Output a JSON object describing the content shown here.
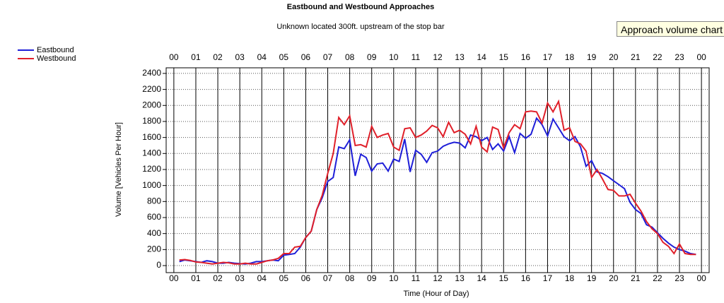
{
  "chart_data": {
    "type": "line",
    "title": "Eastbound and Westbound Approaches",
    "subtitle": "Unknown located 300ft. upstream of the stop bar",
    "tooltip": "Approach volume chart",
    "xlabel": "Time (Hour of Day)",
    "ylabel": "Volume [Vehicles Per Hour]",
    "legend": "top-left",
    "grid": true,
    "xlim": [
      -0.35,
      24.35
    ],
    "ylim": [
      -88,
      2470
    ],
    "xticks": [
      {
        "value": 0,
        "label": "00"
      },
      {
        "value": 1,
        "label": "01"
      },
      {
        "value": 2,
        "label": "02"
      },
      {
        "value": 3,
        "label": "03"
      },
      {
        "value": 4,
        "label": "04"
      },
      {
        "value": 5,
        "label": "05"
      },
      {
        "value": 6,
        "label": "06"
      },
      {
        "value": 7,
        "label": "07"
      },
      {
        "value": 8,
        "label": "08"
      },
      {
        "value": 9,
        "label": "09"
      },
      10,
      11,
      12,
      13,
      14,
      15,
      16,
      17,
      18,
      19,
      20,
      21,
      22,
      23,
      {
        "value": 24,
        "label": "00"
      }
    ],
    "yticks": [
      0,
      200,
      400,
      600,
      800,
      1000,
      1200,
      1400,
      1600,
      1800,
      2000,
      2200,
      2400
    ],
    "x": [
      0.25,
      0.5,
      0.75,
      1,
      1.25,
      1.5,
      1.75,
      2,
      2.25,
      2.5,
      2.75,
      3,
      3.25,
      3.5,
      3.75,
      4,
      4.25,
      4.5,
      4.75,
      5,
      5.25,
      5.5,
      5.75,
      6,
      6.25,
      6.5,
      6.75,
      7,
      7.25,
      7.5,
      7.75,
      8,
      8.25,
      8.5,
      8.75,
      9,
      9.25,
      9.5,
      9.75,
      10,
      10.25,
      10.5,
      10.75,
      11,
      11.25,
      11.5,
      11.75,
      12,
      12.25,
      12.5,
      12.75,
      13,
      13.25,
      13.5,
      13.75,
      14,
      14.25,
      14.5,
      14.75,
      15,
      15.25,
      15.5,
      15.75,
      16,
      16.25,
      16.5,
      16.75,
      17,
      17.25,
      17.5,
      17.75,
      18,
      18.25,
      18.5,
      18.75,
      19,
      19.25,
      19.5,
      19.75,
      20,
      20.25,
      20.5,
      20.75,
      21,
      21.25,
      21.5,
      21.75,
      22,
      22.25,
      22.5,
      22.75,
      23,
      23.25,
      23.5,
      23.75
    ],
    "series": [
      {
        "name": "Eastbound",
        "color": "#1f1fd8",
        "values": [
          50,
          70,
          60,
          50,
          40,
          60,
          50,
          30,
          30,
          40,
          30,
          25,
          20,
          30,
          50,
          50,
          60,
          70,
          60,
          130,
          140,
          150,
          230,
          350,
          430,
          700,
          850,
          1050,
          1100,
          1480,
          1460,
          1570,
          1120,
          1390,
          1350,
          1180,
          1270,
          1280,
          1180,
          1330,
          1300,
          1580,
          1170,
          1440,
          1390,
          1290,
          1410,
          1430,
          1490,
          1520,
          1540,
          1530,
          1470,
          1630,
          1610,
          1560,
          1600,
          1450,
          1520,
          1430,
          1610,
          1410,
          1650,
          1590,
          1640,
          1840,
          1760,
          1620,
          1830,
          1720,
          1610,
          1560,
          1610,
          1480,
          1240,
          1310,
          1170,
          1150,
          1110,
          1060,
          1010,
          960,
          790,
          700,
          650,
          510,
          480,
          410,
          340,
          280,
          230,
          200,
          180,
          150,
          140
        ]
      },
      {
        "name": "Westbound",
        "color": "#e0202a",
        "values": [
          70,
          75,
          65,
          45,
          40,
          30,
          20,
          30,
          40,
          35,
          20,
          20,
          30,
          20,
          20,
          40,
          60,
          70,
          90,
          150,
          150,
          230,
          240,
          350,
          430,
          700,
          880,
          1150,
          1400,
          1850,
          1760,
          1870,
          1500,
          1510,
          1480,
          1740,
          1600,
          1630,
          1650,
          1480,
          1440,
          1710,
          1720,
          1600,
          1630,
          1680,
          1750,
          1720,
          1610,
          1790,
          1660,
          1690,
          1640,
          1520,
          1740,
          1480,
          1420,
          1730,
          1700,
          1470,
          1660,
          1760,
          1710,
          1920,
          1930,
          1920,
          1780,
          2030,
          1920,
          2050,
          1690,
          1720,
          1550,
          1520,
          1430,
          1100,
          1200,
          1080,
          950,
          940,
          870,
          870,
          890,
          780,
          680,
          550,
          460,
          400,
          290,
          240,
          150,
          270,
          150,
          140,
          140
        ]
      }
    ]
  }
}
